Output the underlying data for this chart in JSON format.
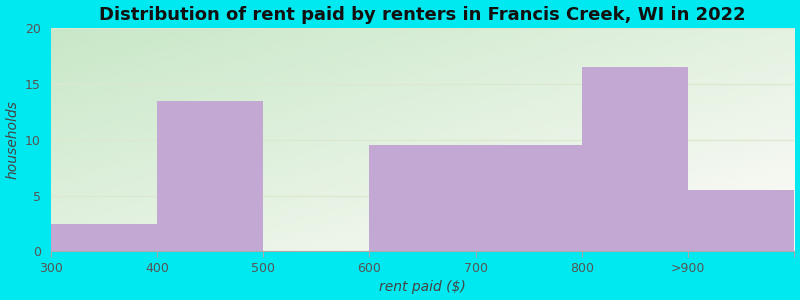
{
  "categories": [
    "300",
    "400",
    "500",
    "600",
    "700",
    "800",
    ">900"
  ],
  "values": [
    2.5,
    13.5,
    0,
    9.5,
    9.5,
    16.5,
    5.5
  ],
  "bar_color": "#c4a8d4",
  "title": "Distribution of rent paid by renters in Francis Creek, WI in 2022",
  "xlabel": "rent paid ($)",
  "ylabel": "households",
  "ylim": [
    0,
    20
  ],
  "yticks": [
    0,
    5,
    10,
    15,
    20
  ],
  "figure_bg_color": "#00e8f0",
  "grid_color": "#e0e8d8",
  "title_fontsize": 13,
  "label_fontsize": 10,
  "tick_fontsize": 9,
  "bg_color_topleft": "#c8e8c8",
  "bg_color_bottomright": "#f5f5f0",
  "n_bars": 7
}
